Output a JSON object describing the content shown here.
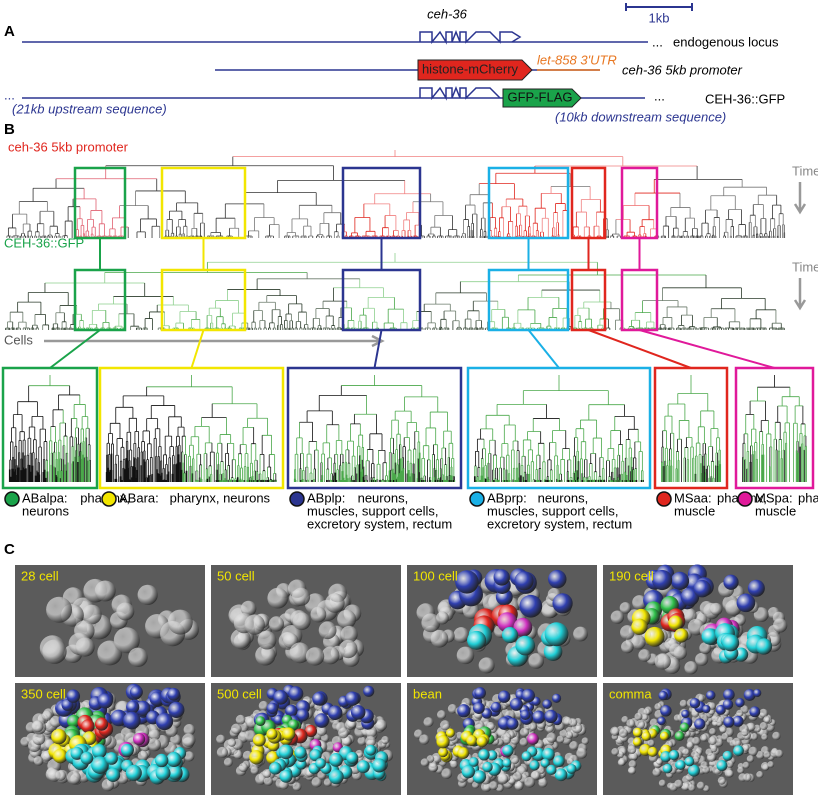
{
  "panel_a": {
    "label": "A",
    "scale": "1kb",
    "gene": "ceh-36",
    "endogenous": {
      "dots": "...",
      "name": "endogenous locus"
    },
    "promoter": {
      "reporter": "histone-mCherry",
      "utr": "let-858 3'UTR",
      "name": "ceh-36 5kb promoter"
    },
    "fosmid": {
      "dots_left": "...",
      "dots_right": "...",
      "tag": "GFP-FLAG",
      "name": "CEH-36::GFP",
      "upstream": "(21kb upstream sequence)",
      "downstream": "(10kb downstream sequence)"
    }
  },
  "panel_b": {
    "label": "B",
    "promoter_title": "ceh-36 5kb promoter",
    "gfp_title": "CEH-36::GFP",
    "time": "Time",
    "time2": "Time",
    "cells": "Cells",
    "clades": [
      {
        "name": "ABalpa:",
        "lines": [
          "pharynx,",
          "neurons"
        ],
        "color": "#1aa34a"
      },
      {
        "name": "ABara:",
        "lines": [
          "pharynx, neurons"
        ],
        "color": "#f2e600"
      },
      {
        "name": "ABplp:",
        "lines": [
          "neurons,",
          "muscles, support cells,",
          "excretory system, rectum"
        ],
        "color": "#2b3590"
      },
      {
        "name": "ABprp:",
        "lines": [
          "neurons,",
          "muscles, support cells,",
          "excretory system, rectum"
        ],
        "color": "#1ab0e6"
      },
      {
        "name": "MSaa:",
        "lines": [
          "pharynx,",
          "muscle"
        ],
        "color": "#e0261e"
      },
      {
        "name": "MSpa:",
        "lines": [
          "pharynx,",
          "muscle"
        ],
        "color": "#e0199a"
      }
    ]
  },
  "panel_c": {
    "label": "C",
    "stages": [
      "28 cell",
      "50 cell",
      "100 cell",
      "190 cell",
      "350 cell",
      "500 cell",
      "bean",
      "comma"
    ]
  }
}
